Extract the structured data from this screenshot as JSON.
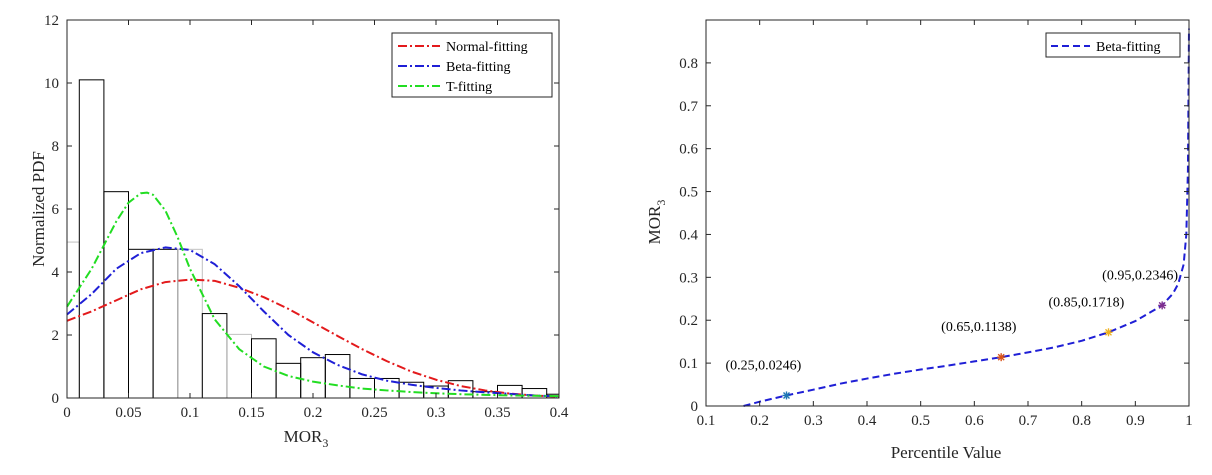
{
  "chart_data": [
    {
      "type": "bar",
      "xlabel_main": "MOR",
      "xlabel_sub": "3",
      "ylabel": "Normalized PDF",
      "xlim": [
        0,
        0.4
      ],
      "ylim": [
        0,
        12
      ],
      "xticks": [
        0,
        0.05,
        0.1,
        0.15,
        0.2,
        0.25,
        0.3,
        0.35,
        0.4
      ],
      "xtick_labels": [
        "0",
        "0.05",
        "0.1",
        "0.15",
        "0.2",
        "0.25",
        "0.3",
        "0.35",
        "0.4"
      ],
      "yticks": [
        0,
        2,
        4,
        6,
        8,
        10,
        12
      ],
      "ytick_labels": [
        "0",
        "2",
        "4",
        "6",
        "8",
        "10",
        "12"
      ],
      "histogram": {
        "bins": [
          {
            "start": 0.0,
            "end": 0.01,
            "value": 4.95,
            "edge": "#c0c0c0"
          },
          {
            "start": 0.01,
            "end": 0.03,
            "value": 10.1,
            "edge": "#000000"
          },
          {
            "start": 0.03,
            "end": 0.05,
            "value": 6.55,
            "edge": "#000000"
          },
          {
            "start": 0.05,
            "end": 0.07,
            "value": 4.72,
            "edge": "#000000"
          },
          {
            "start": 0.07,
            "end": 0.09,
            "value": 4.72,
            "edge": "#000000"
          },
          {
            "start": 0.09,
            "end": 0.11,
            "value": 4.72,
            "edge": "#c0c0c0"
          },
          {
            "start": 0.11,
            "end": 0.13,
            "value": 2.68,
            "edge": "#000000"
          },
          {
            "start": 0.13,
            "end": 0.15,
            "value": 2.02,
            "edge": "#c0c0c0"
          },
          {
            "start": 0.15,
            "end": 0.17,
            "value": 1.88,
            "edge": "#000000"
          },
          {
            "start": 0.17,
            "end": 0.19,
            "value": 1.1,
            "edge": "#000000"
          },
          {
            "start": 0.19,
            "end": 0.21,
            "value": 1.28,
            "edge": "#000000"
          },
          {
            "start": 0.21,
            "end": 0.23,
            "value": 1.38,
            "edge": "#000000"
          },
          {
            "start": 0.23,
            "end": 0.25,
            "value": 0.62,
            "edge": "#000000"
          },
          {
            "start": 0.25,
            "end": 0.27,
            "value": 0.62,
            "edge": "#000000"
          },
          {
            "start": 0.27,
            "end": 0.29,
            "value": 0.5,
            "edge": "#000000"
          },
          {
            "start": 0.29,
            "end": 0.31,
            "value": 0.38,
            "edge": "#000000"
          },
          {
            "start": 0.31,
            "end": 0.33,
            "value": 0.55,
            "edge": "#000000"
          },
          {
            "start": 0.33,
            "end": 0.35,
            "value": 0.2,
            "edge": "#000000"
          },
          {
            "start": 0.35,
            "end": 0.37,
            "value": 0.4,
            "edge": "#000000"
          },
          {
            "start": 0.37,
            "end": 0.39,
            "value": 0.3,
            "edge": "#000000"
          },
          {
            "start": 0.39,
            "end": 0.4,
            "value": 0.12,
            "edge": "#000000"
          }
        ]
      },
      "series": [
        {
          "name": "Normal-fitting",
          "color": "#e31a1c",
          "x": [
            0,
            0.02,
            0.04,
            0.06,
            0.08,
            0.1,
            0.12,
            0.14,
            0.16,
            0.18,
            0.2,
            0.22,
            0.24,
            0.26,
            0.28,
            0.3,
            0.32,
            0.34,
            0.36,
            0.38,
            0.4
          ],
          "y": [
            2.45,
            2.75,
            3.1,
            3.45,
            3.68,
            3.76,
            3.72,
            3.5,
            3.2,
            2.83,
            2.4,
            1.97,
            1.55,
            1.17,
            0.84,
            0.58,
            0.38,
            0.24,
            0.14,
            0.08,
            0.04
          ]
        },
        {
          "name": "Beta-fitting",
          "color": "#1f1fd6",
          "x": [
            0,
            0.02,
            0.04,
            0.06,
            0.08,
            0.1,
            0.12,
            0.14,
            0.16,
            0.18,
            0.2,
            0.22,
            0.24,
            0.26,
            0.28,
            0.3,
            0.32,
            0.34,
            0.36,
            0.38,
            0.4
          ],
          "y": [
            2.65,
            3.3,
            4.1,
            4.6,
            4.78,
            4.7,
            4.25,
            3.55,
            2.75,
            2.0,
            1.45,
            1.05,
            0.75,
            0.55,
            0.42,
            0.32,
            0.24,
            0.18,
            0.13,
            0.08,
            0.05
          ]
        },
        {
          "name": "T-fitting",
          "color": "#22dd22",
          "x": [
            0,
            0.02,
            0.04,
            0.05,
            0.06,
            0.065,
            0.07,
            0.08,
            0.09,
            0.1,
            0.12,
            0.14,
            0.16,
            0.18,
            0.2,
            0.22,
            0.24,
            0.26,
            0.28,
            0.3,
            0.32,
            0.34,
            0.36,
            0.38,
            0.4
          ],
          "y": [
            2.9,
            4.1,
            5.6,
            6.2,
            6.5,
            6.52,
            6.45,
            5.95,
            5.1,
            4.1,
            2.5,
            1.55,
            1.0,
            0.7,
            0.52,
            0.4,
            0.3,
            0.24,
            0.19,
            0.15,
            0.12,
            0.1,
            0.08,
            0.07,
            0.06
          ]
        }
      ]
    },
    {
      "type": "line",
      "xlabel": "Percentile Value",
      "ylabel_main": "MOR",
      "ylabel_sub": "3",
      "xlim": [
        0.1,
        1
      ],
      "ylim": [
        0,
        0.9
      ],
      "xticks": [
        0.1,
        0.2,
        0.3,
        0.4,
        0.5,
        0.6,
        0.7,
        0.8,
        0.9,
        1
      ],
      "xtick_labels": [
        "0.1",
        "0.2",
        "0.3",
        "0.4",
        "0.5",
        "0.6",
        "0.7",
        "0.8",
        "0.9",
        "1"
      ],
      "yticks": [
        0,
        0.1,
        0.2,
        0.3,
        0.4,
        0.5,
        0.6,
        0.7,
        0.8
      ],
      "ytick_labels": [
        "0",
        "0.1",
        "0.2",
        "0.3",
        "0.4",
        "0.5",
        "0.6",
        "0.7",
        "0.8"
      ],
      "series": [
        {
          "name": "Beta-fitting",
          "color": "#1f1fd6",
          "x": [
            0.17,
            0.2,
            0.25,
            0.3,
            0.35,
            0.4,
            0.45,
            0.5,
            0.55,
            0.6,
            0.65,
            0.7,
            0.75,
            0.8,
            0.85,
            0.9,
            0.93,
            0.95,
            0.97,
            0.98,
            0.99,
            0.995,
            0.998,
            1.0
          ],
          "y": [
            0.0,
            0.01,
            0.0246,
            0.038,
            0.052,
            0.064,
            0.075,
            0.085,
            0.094,
            0.104,
            0.1138,
            0.125,
            0.137,
            0.152,
            0.1718,
            0.198,
            0.22,
            0.2346,
            0.262,
            0.285,
            0.33,
            0.4,
            0.55,
            0.88
          ]
        }
      ],
      "markers": [
        {
          "x": 0.25,
          "y": 0.0246,
          "label": "(0.25,0.0246)",
          "color": "#1f77b4"
        },
        {
          "x": 0.65,
          "y": 0.1138,
          "label": "(0.65,0.1138)",
          "color": "#d95319"
        },
        {
          "x": 0.85,
          "y": 0.1718,
          "label": "(0.85,0.1718)",
          "color": "#edb120"
        },
        {
          "x": 0.95,
          "y": 0.2346,
          "label": "(0.95,0.2346)",
          "color": "#7e2f8e"
        }
      ]
    }
  ]
}
